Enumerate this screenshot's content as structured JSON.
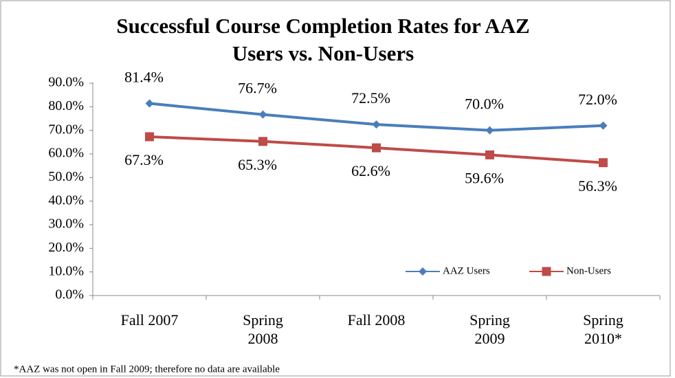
{
  "chart_data": {
    "type": "line",
    "title": "Successful Course Completion Rates for AAZ Users vs. Non-Users",
    "annotation": "*AAZ was not open in Fall 2009; therefore no data are available",
    "categories": [
      "Fall 2007",
      "Spring 2008",
      "Fall 2008",
      "Spring 2009",
      "Spring 2010*"
    ],
    "series": [
      {
        "name": "AAZ Users",
        "color": "#4a7ebb",
        "marker": "diamond",
        "values": [
          81.4,
          76.7,
          72.5,
          70.0,
          72.0
        ],
        "value_labels": [
          "81.4%",
          "76.7%",
          "72.5%",
          "70.0%",
          "72.0%"
        ]
      },
      {
        "name": "Non-Users",
        "color": "#be4b48",
        "marker": "square",
        "values": [
          67.3,
          65.3,
          62.6,
          59.6,
          56.3
        ],
        "value_labels": [
          "67.3%",
          "65.3%",
          "62.6%",
          "59.6%",
          "56.3%"
        ]
      }
    ],
    "ylim": [
      0,
      90
    ],
    "yticks": [
      {
        "value": 0,
        "label": "0.0%"
      },
      {
        "value": 10,
        "label": "10.0%"
      },
      {
        "value": 20,
        "label": "20.0%"
      },
      {
        "value": 30,
        "label": "30.0%"
      },
      {
        "value": 40,
        "label": "40.0%"
      },
      {
        "value": 50,
        "label": "50.0%"
      },
      {
        "value": 60,
        "label": "60.0%"
      },
      {
        "value": 70,
        "label": "70.0%"
      },
      {
        "value": 80,
        "label": "80.0%"
      },
      {
        "value": 90,
        "label": "90.0%"
      }
    ],
    "grid": false,
    "legend": "lower right"
  }
}
